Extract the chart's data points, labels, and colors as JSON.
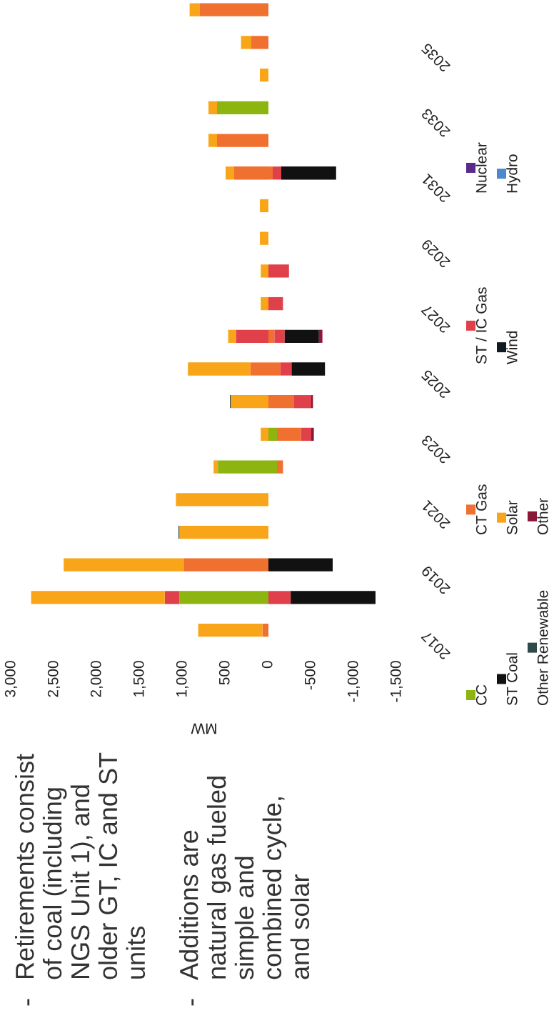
{
  "chart_data": {
    "type": "bar",
    "orientation": "horizontal",
    "stacked": true,
    "categories": [
      null,
      "2035",
      null,
      "2033",
      null,
      "2031",
      null,
      "2029",
      null,
      "2027",
      null,
      "2025",
      null,
      "2023",
      null,
      "2021",
      null,
      "2019",
      null,
      "2017"
    ],
    "series": [
      {
        "name": "CC",
        "color": "#8db510",
        "values": [
          null,
          null,
          null,
          600,
          null,
          null,
          null,
          null,
          null,
          null,
          null,
          null,
          null,
          null,
          590,
          null,
          null,
          null,
          1040,
          null
        ]
      },
      {
        "name": "CT Gas",
        "color": "#f07030",
        "values": [
          800,
          200,
          null,
          null,
          600,
          400,
          null,
          null,
          null,
          null,
          null,
          210,
          null,
          null,
          null,
          null,
          null,
          990,
          null,
          70
        ]
      },
      {
        "name": "ST / IC Gas",
        "color": "#e0404a",
        "values": [
          null,
          null,
          null,
          null,
          null,
          null,
          null,
          null,
          null,
          null,
          380,
          null,
          null,
          null,
          null,
          null,
          null,
          null,
          170,
          null
        ]
      },
      {
        "name": "Nuclear",
        "color": "#5a2a8a",
        "values": [
          null,
          null,
          null,
          null,
          null,
          null,
          null,
          null,
          null,
          null,
          null,
          null,
          null,
          null,
          null,
          null,
          null,
          null,
          null,
          null
        ]
      },
      {
        "color": "#8db510",
        "values": [
          null,
          null,
          null,
          null,
          null,
          null,
          null,
          null,
          null,
          null,
          null,
          null,
          null,
          -100,
          -100,
          null,
          null,
          null,
          null,
          null
        ]
      },
      {
        "color": "#f07030",
        "values": [
          null,
          null,
          null,
          null,
          null,
          -50,
          null,
          null,
          null,
          null,
          -70,
          -140,
          -300,
          -280,
          -70,
          null,
          null,
          null,
          null,
          null
        ]
      },
      {
        "color": "#e0404a",
        "values": [
          null,
          null,
          null,
          null,
          null,
          -100,
          null,
          null,
          -240,
          -170,
          -120,
          -130,
          -200,
          -120,
          null,
          null,
          null,
          null,
          -260,
          null
        ]
      },
      {
        "name": "ST Coal",
        "color": "#111111",
        "values": [
          null,
          null,
          null,
          null,
          null,
          -640,
          null,
          null,
          null,
          null,
          -400,
          -390,
          null,
          null,
          null,
          null,
          null,
          -750,
          -990,
          null
        ]
      },
      {
        "name": "Solar",
        "color": "#f9a51a",
        "values": [
          120,
          120,
          100,
          100,
          100,
          100,
          100,
          100,
          90,
          90,
          90,
          730,
          440,
          90,
          50,
          1080,
          1040,
          1400,
          1560,
          750
        ]
      },
      {
        "name": "Wind",
        "color": "#0f1a22",
        "values": [
          null,
          null,
          null,
          null,
          null,
          null,
          null,
          null,
          null,
          null,
          null,
          null,
          null,
          null,
          null,
          null,
          null,
          null,
          null,
          null
        ]
      },
      {
        "name": "Hydro",
        "color": "#4a88d0",
        "values": [
          null,
          null,
          null,
          null,
          null,
          null,
          null,
          null,
          null,
          null,
          null,
          null,
          null,
          null,
          null,
          null,
          null,
          null,
          null,
          null
        ]
      },
      {
        "name": "Other Renewable",
        "color": "#2f4a48",
        "values": [
          null,
          null,
          null,
          null,
          null,
          null,
          null,
          null,
          null,
          null,
          null,
          null,
          10,
          null,
          null,
          null,
          10,
          null,
          null,
          null
        ]
      },
      {
        "name": "Other",
        "color": "#8b1838",
        "values": [
          null,
          null,
          null,
          null,
          null,
          null,
          null,
          null,
          null,
          null,
          -40,
          null,
          -20,
          -30,
          null,
          null,
          null,
          null,
          null,
          null
        ]
      }
    ],
    "xlim": [
      3000,
      -1500
    ],
    "xticks": [
      {
        "value": 3000,
        "label": "3,000"
      },
      {
        "value": 2500,
        "label": "2,500"
      },
      {
        "value": 2000,
        "label": "2,000"
      },
      {
        "value": 1500,
        "label": "1,500"
      },
      {
        "value": 1000,
        "label": "1,000"
      },
      500,
      0,
      -500,
      {
        "value": -1000,
        "label": "-1,000"
      },
      {
        "value": -1500,
        "label": "-1,500"
      }
    ],
    "xlabel": "MW",
    "legend": "right",
    "annotations": [
      "- Retirements consist\nof coal (including\nNGS Unit 1), and\nolder GT, IC and ST\nunits",
      "- Additions are\nnatural gas fueled\nsimple and\ncombined cycle,\nand solar"
    ]
  }
}
